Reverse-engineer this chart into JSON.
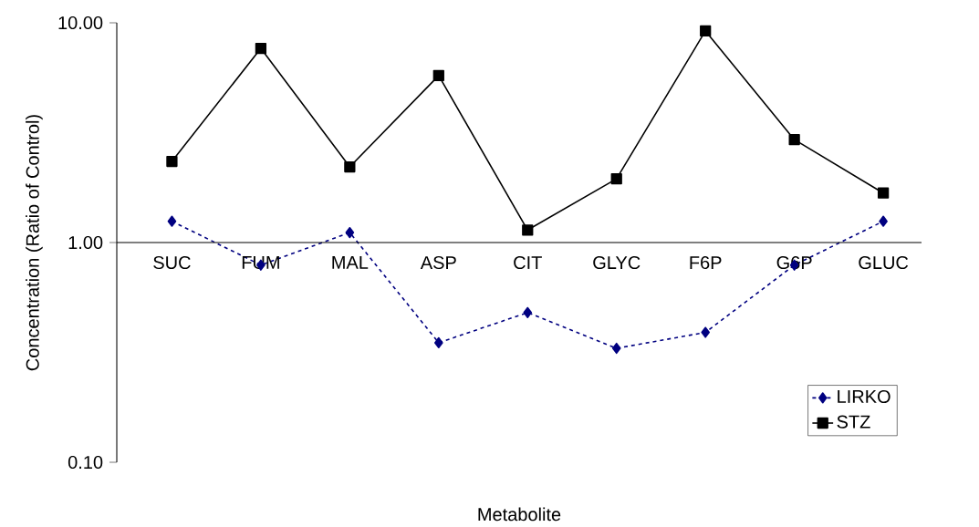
{
  "chart_data": {
    "type": "line",
    "xlabel": "Metabolite",
    "ylabel": "Concentration (Ratio of Control)",
    "categories": [
      "SUC",
      "FUM",
      "MAL",
      "ASP",
      "CIT",
      "GLYC",
      "F6P",
      "G6P",
      "GLUC"
    ],
    "series": [
      {
        "name": "LIRKO",
        "color": "#000080",
        "marker": "diamond",
        "line_style": "dashed",
        "values": [
          1.25,
          0.79,
          1.11,
          0.35,
          0.48,
          0.33,
          0.39,
          0.79,
          1.25
        ]
      },
      {
        "name": "STZ",
        "color": "#000000",
        "marker": "square",
        "line_style": "solid",
        "values": [
          2.34,
          7.65,
          2.21,
          5.75,
          1.14,
          1.95,
          9.18,
          2.94,
          1.68
        ]
      }
    ],
    "log": "y",
    "ylim": [
      0.1,
      10
    ],
    "yticks": [
      {
        "value": 0.1,
        "label": "0.10"
      },
      {
        "value": 1,
        "label": "1.00"
      },
      {
        "value": 10,
        "label": "10.00"
      }
    ],
    "grid": false,
    "legend": "bottom right"
  }
}
